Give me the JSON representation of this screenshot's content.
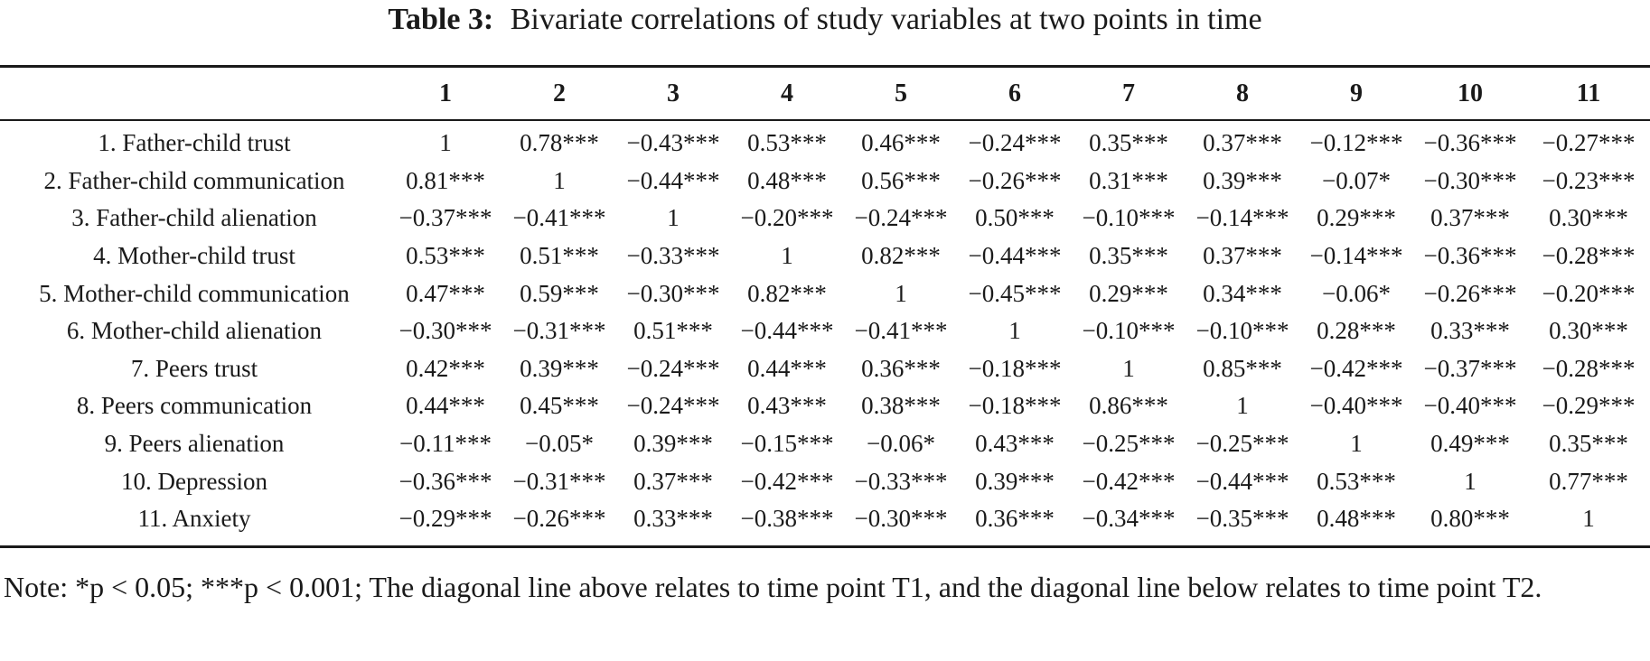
{
  "caption": {
    "label": "Table 3:",
    "title": "Bivariate correlations of study variables at two points in time"
  },
  "table": {
    "columns": [
      "",
      "1",
      "2",
      "3",
      "4",
      "5",
      "6",
      "7",
      "8",
      "9",
      "10",
      "11"
    ],
    "rows": [
      {
        "label": "1. Father-child trust",
        "cells": [
          "1",
          "0.78***",
          "−0.43***",
          "0.53***",
          "0.46***",
          "−0.24***",
          "0.35***",
          "0.37***",
          "−0.12***",
          "−0.36***",
          "−0.27***"
        ]
      },
      {
        "label": "2. Father-child communication",
        "cells": [
          "0.81***",
          "1",
          "−0.44***",
          "0.48***",
          "0.56***",
          "−0.26***",
          "0.31***",
          "0.39***",
          "−0.07*",
          "−0.30***",
          "−0.23***"
        ]
      },
      {
        "label": "3. Father-child alienation",
        "cells": [
          "−0.37***",
          "−0.41***",
          "1",
          "−0.20***",
          "−0.24***",
          "0.50***",
          "−0.10***",
          "−0.14***",
          "0.29***",
          "0.37***",
          "0.30***"
        ]
      },
      {
        "label": "4. Mother-child trust",
        "cells": [
          "0.53***",
          "0.51***",
          "−0.33***",
          "1",
          "0.82***",
          "−0.44***",
          "0.35***",
          "0.37***",
          "−0.14***",
          "−0.36***",
          "−0.28***"
        ]
      },
      {
        "label": "5. Mother-child communication",
        "cells": [
          "0.47***",
          "0.59***",
          "−0.30***",
          "0.82***",
          "1",
          "−0.45***",
          "0.29***",
          "0.34***",
          "−0.06*",
          "−0.26***",
          "−0.20***"
        ]
      },
      {
        "label": "6. Mother-child alienation",
        "cells": [
          "−0.30***",
          "−0.31***",
          "0.51***",
          "−0.44***",
          "−0.41***",
          "1",
          "−0.10***",
          "−0.10***",
          "0.28***",
          "0.33***",
          "0.30***"
        ]
      },
      {
        "label": "7. Peers trust",
        "cells": [
          "0.42***",
          "0.39***",
          "−0.24***",
          "0.44***",
          "0.36***",
          "−0.18***",
          "1",
          "0.85***",
          "−0.42***",
          "−0.37***",
          "−0.28***"
        ]
      },
      {
        "label": "8. Peers communication",
        "cells": [
          "0.44***",
          "0.45***",
          "−0.24***",
          "0.43***",
          "0.38***",
          "−0.18***",
          "0.86***",
          "1",
          "−0.40***",
          "−0.40***",
          "−0.29***"
        ]
      },
      {
        "label": "9. Peers alienation",
        "cells": [
          "−0.11***",
          "−0.05*",
          "0.39***",
          "−0.15***",
          "−0.06*",
          "0.43***",
          "−0.25***",
          "−0.25***",
          "1",
          "0.49***",
          "0.35***"
        ]
      },
      {
        "label": "10. Depression",
        "cells": [
          "−0.36***",
          "−0.31***",
          "0.37***",
          "−0.42***",
          "−0.33***",
          "0.39***",
          "−0.42***",
          "−0.44***",
          "0.53***",
          "1",
          "0.77***"
        ]
      },
      {
        "label": "11. Anxiety",
        "cells": [
          "−0.29***",
          "−0.26***",
          "0.33***",
          "−0.38***",
          "−0.30***",
          "0.36***",
          "−0.34***",
          "−0.35***",
          "0.48***",
          "0.80***",
          "1"
        ]
      }
    ]
  },
  "note": "Note: *p < 0.05; ***p < 0.001; The diagonal line above relates to time point T1, and the diagonal line below relates to time point T2."
}
